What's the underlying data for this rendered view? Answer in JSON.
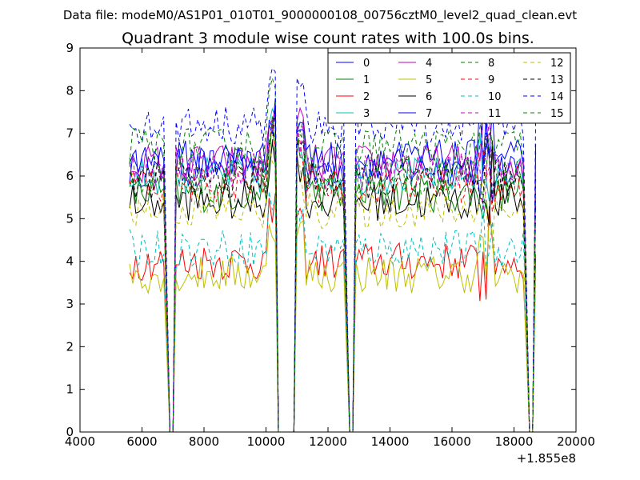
{
  "header": {
    "suptitle": "Data file: modeM0/AS1P01_010T01_9000000108_00756cztM0_level2_quad_clean.evt"
  },
  "chart_data": {
    "type": "line",
    "title": "Quadrant 3 module wise count rates with 100.0s bins.",
    "xlabel": "",
    "ylabel": "",
    "xlim": [
      4000,
      20000
    ],
    "ylim": [
      0,
      9
    ],
    "x_offset_label": "+1.855e8",
    "x_ticks": [
      "4000",
      "6000",
      "8000",
      "10000",
      "12000",
      "14000",
      "16000",
      "18000",
      "20000"
    ],
    "y_ticks": [
      "0",
      "1",
      "2",
      "3",
      "4",
      "5",
      "6",
      "7",
      "8",
      "9"
    ],
    "grid": false,
    "legend_position": "top-right",
    "legend_columns": 4,
    "x_start": 5600,
    "x_step": 100,
    "segments": [
      {
        "start": 5600,
        "end": 6800
      },
      {
        "start": 7100,
        "end": 10300
      },
      {
        "start": 11000,
        "end": 12600
      },
      {
        "start": 12900,
        "end": 18400
      },
      {
        "start": 18700,
        "end": 18700
      }
    ],
    "series": [
      {
        "name": "0",
        "color": "#0000ff",
        "dash": "solid",
        "level": 6.2
      },
      {
        "name": "1",
        "color": "#008000",
        "dash": "solid",
        "level": 5.6
      },
      {
        "name": "2",
        "color": "#ff0000",
        "dash": "solid",
        "level": 4.0
      },
      {
        "name": "3",
        "color": "#00bfbf",
        "dash": "solid",
        "level": 6.0
      },
      {
        "name": "4",
        "color": "#bf00bf",
        "dash": "solid",
        "level": 6.3
      },
      {
        "name": "5",
        "color": "#bfbf00",
        "dash": "solid",
        "level": 3.7
      },
      {
        "name": "6",
        "color": "#000000",
        "dash": "solid",
        "level": 5.4
      },
      {
        "name": "7",
        "color": "#0000ff",
        "dash": "solid",
        "level": 6.4
      },
      {
        "name": "8",
        "color": "#008000",
        "dash": "dashed",
        "level": 6.7
      },
      {
        "name": "9",
        "color": "#ff0000",
        "dash": "dashed",
        "level": 5.8
      },
      {
        "name": "10",
        "color": "#00bfbf",
        "dash": "dashed",
        "level": 4.3
      },
      {
        "name": "11",
        "color": "#bf00bf",
        "dash": "dashed",
        "level": 6.1
      },
      {
        "name": "12",
        "color": "#bfbf00",
        "dash": "dashed",
        "level": 5.2
      },
      {
        "name": "13",
        "color": "#000000",
        "dash": "dashed",
        "level": 5.9
      },
      {
        "name": "14",
        "color": "#0000ff",
        "dash": "dashed",
        "level": 7.2
      },
      {
        "name": "15",
        "color": "#008000",
        "dash": "dashed",
        "level": 6.0
      }
    ]
  }
}
